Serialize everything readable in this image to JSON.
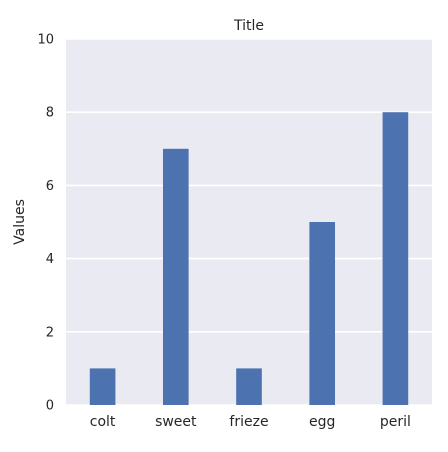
{
  "chart_data": {
    "type": "bar",
    "title": "Title",
    "xlabel": "",
    "ylabel": "Values",
    "categories": [
      "colt",
      "sweet",
      "frieze",
      "egg",
      "peril"
    ],
    "values": [
      1,
      7,
      1,
      5,
      8
    ],
    "ylim": [
      0,
      10
    ],
    "yticks": [
      0,
      2,
      4,
      6,
      8,
      10
    ],
    "grid": true,
    "legend": "none",
    "colors": {
      "bar": "#4c72b0",
      "plot_background": "#eaeaf2",
      "gridline": "#ffffff",
      "text": "#262626"
    }
  }
}
